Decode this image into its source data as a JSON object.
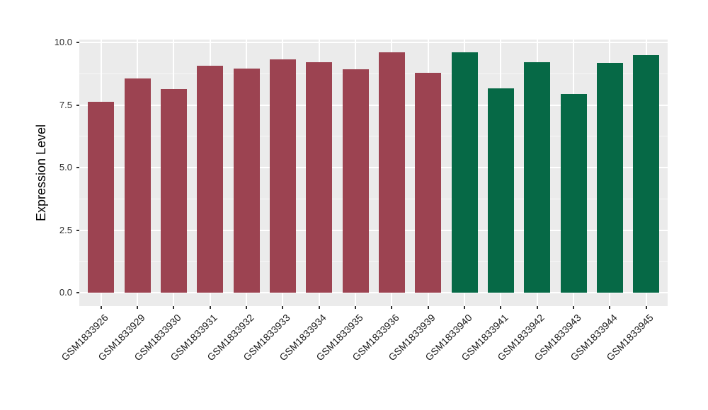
{
  "chart_data": {
    "type": "bar",
    "title": "",
    "xlabel": "",
    "ylabel": "Expression Level",
    "categories": [
      "GSM1833926",
      "GSM1833929",
      "GSM1833930",
      "GSM1833931",
      "GSM1833932",
      "GSM1833933",
      "GSM1833934",
      "GSM1833935",
      "GSM1833936",
      "GSM1833939",
      "GSM1833940",
      "GSM1833941",
      "GSM1833942",
      "GSM1833943",
      "GSM1833944",
      "GSM1833945"
    ],
    "values": [
      7.62,
      8.56,
      8.14,
      9.07,
      8.95,
      9.31,
      9.22,
      8.92,
      9.6,
      8.79,
      9.6,
      8.16,
      9.2,
      7.94,
      9.17,
      9.48
    ],
    "colors": [
      "#9C4351",
      "#9C4351",
      "#9C4351",
      "#9C4351",
      "#9C4351",
      "#9C4351",
      "#9C4351",
      "#9C4351",
      "#9C4351",
      "#9C4351",
      "#066946",
      "#066946",
      "#066946",
      "#066946",
      "#066946",
      "#066946"
    ],
    "group_colors": {
      "group1": "#9C4351",
      "group2": "#066946"
    },
    "ylim": [
      0,
      10.11
    ],
    "yticks": [
      0.0,
      2.5,
      5.0,
      7.5,
      10.0
    ],
    "ytick_labels": [
      "0.0",
      "2.5",
      "5.0",
      "7.5",
      "10.0"
    ],
    "minor_yticks": [
      1.25,
      3.75,
      6.25,
      8.75
    ],
    "panel_bg": "#EBEBEB",
    "grid_color": "#FFFFFF",
    "legend": "none",
    "grid": "on"
  }
}
